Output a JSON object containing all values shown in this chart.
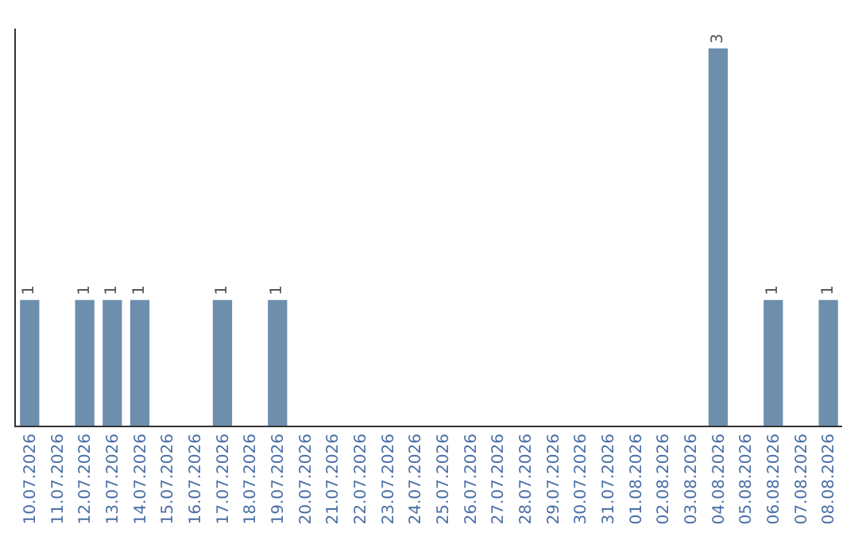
{
  "chart_data": {
    "type": "bar",
    "categories": [
      "10.07.2026",
      "11.07.2026",
      "12.07.2026",
      "13.07.2026",
      "14.07.2026",
      "15.07.2026",
      "16.07.2026",
      "17.07.2026",
      "18.07.2026",
      "19.07.2026",
      "20.07.2026",
      "21.07.2026",
      "22.07.2026",
      "23.07.2026",
      "24.07.2026",
      "25.07.2026",
      "26.07.2026",
      "27.07.2026",
      "28.07.2026",
      "29.07.2026",
      "30.07.2026",
      "31.07.2026",
      "01.08.2026",
      "02.08.2026",
      "03.08.2026",
      "04.08.2026",
      "05.08.2026",
      "06.08.2026",
      "07.08.2026",
      "08.08.2026"
    ],
    "values": [
      1,
      0,
      1,
      1,
      1,
      0,
      0,
      1,
      0,
      1,
      0,
      0,
      0,
      0,
      0,
      0,
      0,
      0,
      0,
      0,
      0,
      0,
      0,
      0,
      0,
      3,
      0,
      1,
      0,
      1
    ],
    "value_labels": [
      "1",
      null,
      "1",
      "1",
      "1",
      null,
      null,
      "1",
      null,
      "1",
      null,
      null,
      null,
      null,
      null,
      null,
      null,
      null,
      null,
      null,
      null,
      null,
      null,
      null,
      null,
      "3",
      null,
      "1",
      null,
      "1"
    ],
    "color": "#6d8fad",
    "legend": false
  }
}
